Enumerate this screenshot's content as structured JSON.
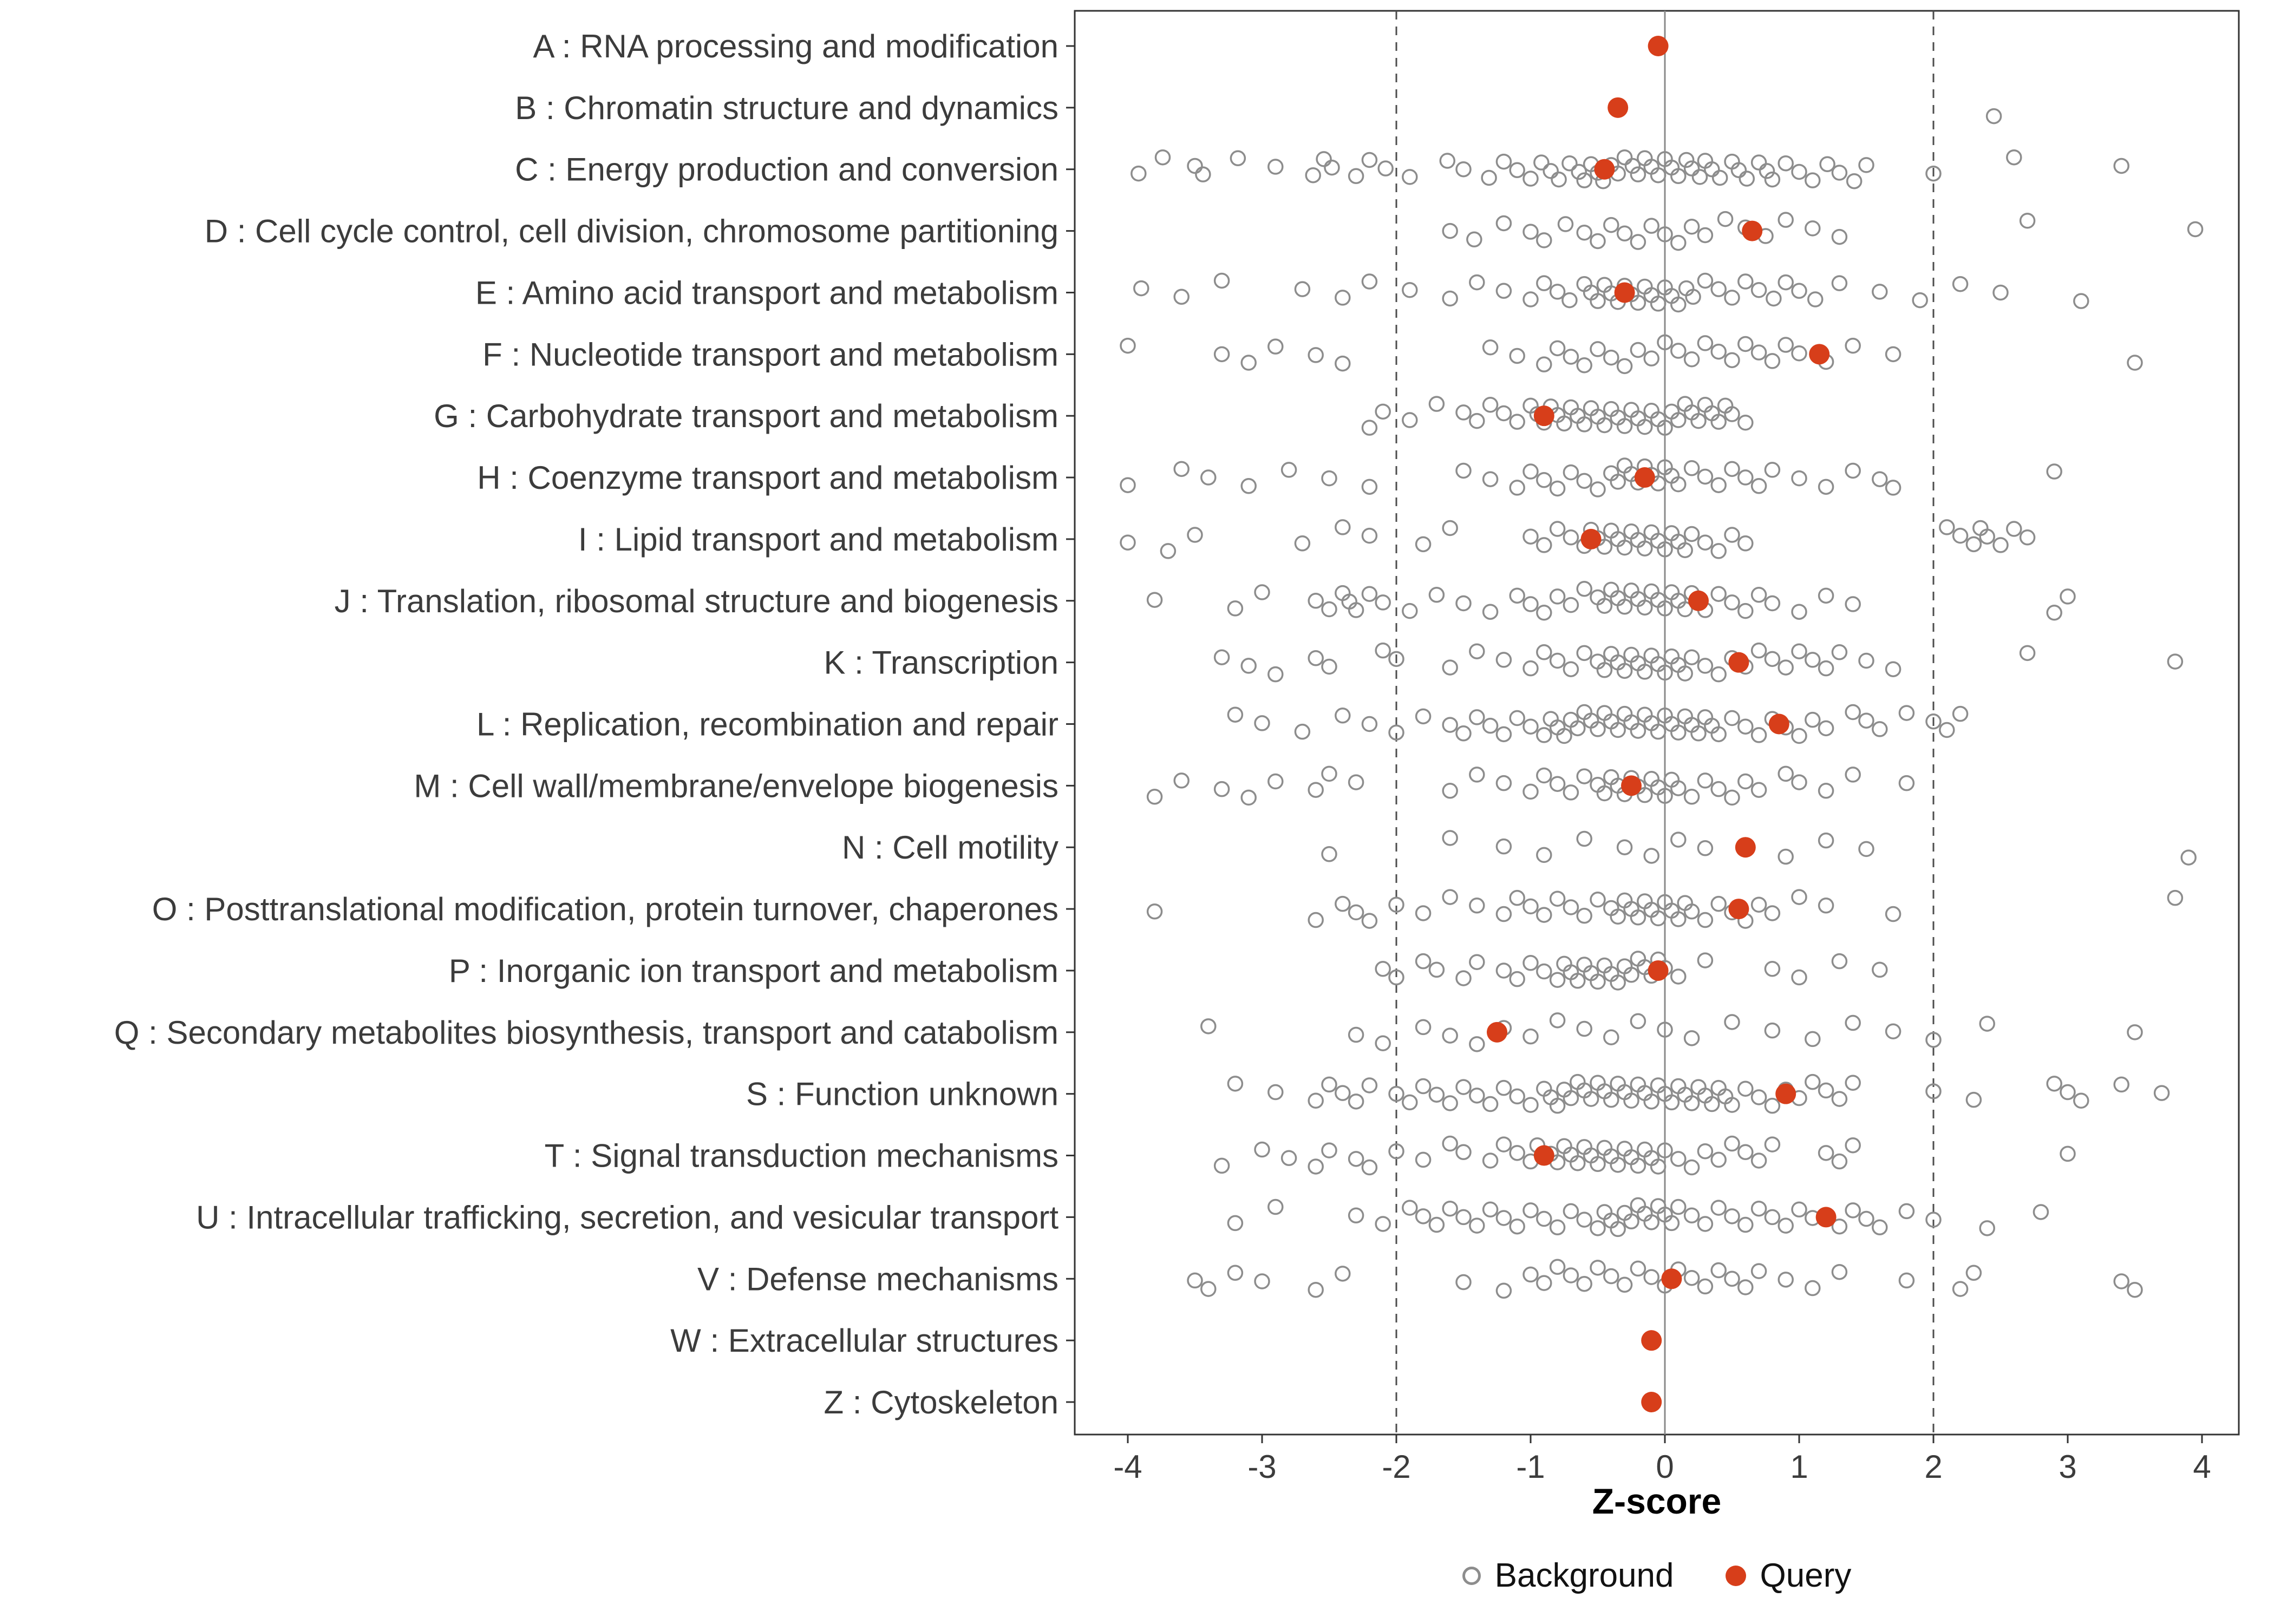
{
  "chart_data": {
    "type": "scatter",
    "title": "",
    "xlabel": "Z-score",
    "xlim": [
      -4.4,
      4.27
    ],
    "xticks": [
      -4,
      -3,
      -2,
      -1,
      0,
      1,
      2,
      3,
      4
    ],
    "grid": false,
    "legend_position": "bottom",
    "reference_lines": {
      "solid": [
        0
      ],
      "dashed": [
        -2,
        2
      ]
    },
    "legend": {
      "background": "Background",
      "query": "Query"
    },
    "colors": {
      "query": "#d73e1a",
      "background_stroke": "#8d8d8d",
      "axis_text": "#3c3c3c",
      "panel_border": "#333333",
      "dashed_line": "#4d4d4d",
      "zero_line": "#8a8a8a",
      "tick": "#333333"
    },
    "categories": [
      {
        "code": "A",
        "label": "A : RNA processing and modification",
        "query": -0.05,
        "background": []
      },
      {
        "code": "B",
        "label": "B : Chromatin structure and dynamics",
        "query": -0.35,
        "background": [
          2.45
        ]
      },
      {
        "code": "C",
        "label": "C : Energy production and conversion",
        "query": -0.45,
        "background": [
          -3.92,
          -3.74,
          -3.5,
          -3.44,
          -3.18,
          -2.9,
          -2.62,
          -2.54,
          -2.48,
          -2.3,
          -2.2,
          -2.08,
          -1.9,
          -1.62,
          -1.5,
          -1.31,
          -1.2,
          -1.1,
          -1.0,
          -0.92,
          -0.85,
          -0.79,
          -0.71,
          -0.64,
          -0.6,
          -0.55,
          -0.5,
          -0.46,
          -0.4,
          -0.35,
          -0.3,
          -0.24,
          -0.2,
          -0.15,
          -0.1,
          -0.05,
          0.0,
          0.05,
          0.1,
          0.16,
          0.2,
          0.26,
          0.3,
          0.35,
          0.41,
          0.5,
          0.55,
          0.61,
          0.7,
          0.76,
          0.8,
          0.9,
          1.0,
          1.1,
          1.21,
          1.3,
          1.41,
          1.5,
          2.0,
          2.6,
          3.4
        ]
      },
      {
        "code": "D",
        "label": "D : Cell cycle control, cell division, chromosome partitioning",
        "query": 0.65,
        "background": [
          -1.6,
          -1.42,
          -1.2,
          -1.0,
          -0.9,
          -0.74,
          -0.6,
          -0.5,
          -0.4,
          -0.3,
          -0.2,
          -0.1,
          0.0,
          0.1,
          0.2,
          0.3,
          0.45,
          0.6,
          0.75,
          0.9,
          1.1,
          1.3,
          2.7,
          3.95
        ]
      },
      {
        "code": "E",
        "label": "E : Amino acid transport and metabolism",
        "query": -0.3,
        "background": [
          -3.9,
          -3.6,
          -3.3,
          -2.7,
          -2.4,
          -2.2,
          -1.9,
          -1.6,
          -1.4,
          -1.2,
          -1.0,
          -0.9,
          -0.8,
          -0.71,
          -0.6,
          -0.55,
          -0.5,
          -0.45,
          -0.4,
          -0.35,
          -0.3,
          -0.25,
          -0.2,
          -0.15,
          -0.1,
          -0.05,
          0.0,
          0.05,
          0.1,
          0.16,
          0.21,
          0.3,
          0.4,
          0.5,
          0.6,
          0.7,
          0.81,
          0.9,
          1.0,
          1.12,
          1.3,
          1.6,
          1.9,
          2.2,
          2.5,
          3.1
        ]
      },
      {
        "code": "F",
        "label": "F : Nucleotide transport and metabolism",
        "query": 1.15,
        "background": [
          -4.0,
          -3.3,
          -3.1,
          -2.9,
          -2.6,
          -2.4,
          -1.3,
          -1.1,
          -0.9,
          -0.8,
          -0.7,
          -0.6,
          -0.5,
          -0.4,
          -0.3,
          -0.2,
          -0.1,
          0.0,
          0.1,
          0.2,
          0.3,
          0.4,
          0.5,
          0.6,
          0.7,
          0.8,
          0.9,
          1.0,
          1.2,
          1.4,
          1.7,
          3.5
        ]
      },
      {
        "code": "G",
        "label": "G : Carbohydrate transport and metabolism",
        "query": -0.9,
        "background": [
          -2.2,
          -2.1,
          -1.9,
          -1.7,
          -1.5,
          -1.4,
          -1.3,
          -1.2,
          -1.1,
          -1.0,
          -0.95,
          -0.9,
          -0.85,
          -0.8,
          -0.75,
          -0.7,
          -0.65,
          -0.6,
          -0.55,
          -0.5,
          -0.45,
          -0.4,
          -0.35,
          -0.3,
          -0.25,
          -0.2,
          -0.15,
          -0.1,
          -0.05,
          0.0,
          0.05,
          0.1,
          0.15,
          0.2,
          0.25,
          0.3,
          0.35,
          0.4,
          0.45,
          0.5,
          0.6
        ]
      },
      {
        "code": "H",
        "label": "H : Coenzyme transport and metabolism",
        "query": -0.15,
        "background": [
          -4.0,
          -3.6,
          -3.4,
          -3.1,
          -2.8,
          -2.5,
          -2.2,
          -1.5,
          -1.3,
          -1.1,
          -1.0,
          -0.9,
          -0.8,
          -0.7,
          -0.6,
          -0.5,
          -0.4,
          -0.35,
          -0.3,
          -0.25,
          -0.2,
          -0.15,
          -0.1,
          -0.05,
          0.0,
          0.05,
          0.1,
          0.2,
          0.3,
          0.4,
          0.5,
          0.6,
          0.7,
          0.8,
          1.0,
          1.2,
          1.4,
          1.6,
          1.7,
          2.9
        ]
      },
      {
        "code": "I",
        "label": "I : Lipid transport and metabolism",
        "query": -0.55,
        "background": [
          -4.0,
          -3.7,
          -3.5,
          -2.7,
          -2.4,
          -2.2,
          -1.8,
          -1.6,
          -1.0,
          -0.9,
          -0.8,
          -0.7,
          -0.6,
          -0.55,
          -0.5,
          -0.45,
          -0.4,
          -0.35,
          -0.3,
          -0.25,
          -0.2,
          -0.15,
          -0.1,
          -0.05,
          0.0,
          0.05,
          0.1,
          0.15,
          0.2,
          0.3,
          0.4,
          0.5,
          0.6,
          2.1,
          2.2,
          2.3,
          2.35,
          2.4,
          2.5,
          2.6,
          2.7
        ]
      },
      {
        "code": "J",
        "label": "J : Translation, ribosomal structure and biogenesis",
        "query": 0.25,
        "background": [
          -3.8,
          -3.2,
          -3.0,
          -2.6,
          -2.5,
          -2.4,
          -2.35,
          -2.3,
          -2.2,
          -2.1,
          -1.9,
          -1.7,
          -1.5,
          -1.3,
          -1.1,
          -1.0,
          -0.9,
          -0.8,
          -0.7,
          -0.6,
          -0.5,
          -0.45,
          -0.4,
          -0.35,
          -0.3,
          -0.25,
          -0.2,
          -0.15,
          -0.1,
          -0.05,
          0.0,
          0.05,
          0.1,
          0.15,
          0.2,
          0.26,
          0.3,
          0.4,
          0.5,
          0.6,
          0.7,
          0.8,
          1.0,
          1.2,
          1.4,
          2.9,
          3.0
        ]
      },
      {
        "code": "K",
        "label": "K : Transcription",
        "query": 0.55,
        "background": [
          -3.3,
          -3.1,
          -2.9,
          -2.6,
          -2.5,
          -2.1,
          -2.0,
          -1.6,
          -1.4,
          -1.2,
          -1.0,
          -0.9,
          -0.8,
          -0.7,
          -0.6,
          -0.5,
          -0.45,
          -0.4,
          -0.35,
          -0.3,
          -0.25,
          -0.2,
          -0.15,
          -0.1,
          -0.05,
          0.0,
          0.05,
          0.1,
          0.15,
          0.2,
          0.3,
          0.4,
          0.5,
          0.6,
          0.7,
          0.8,
          0.9,
          1.0,
          1.1,
          1.2,
          1.3,
          1.5,
          1.7,
          2.7,
          3.8
        ]
      },
      {
        "code": "L",
        "label": "L : Replication, recombination and repair",
        "query": 0.85,
        "background": [
          -3.2,
          -3.0,
          -2.7,
          -2.4,
          -2.2,
          -2.0,
          -1.8,
          -1.6,
          -1.5,
          -1.4,
          -1.3,
          -1.2,
          -1.1,
          -1.0,
          -0.9,
          -0.85,
          -0.8,
          -0.75,
          -0.7,
          -0.65,
          -0.6,
          -0.55,
          -0.5,
          -0.45,
          -0.4,
          -0.35,
          -0.3,
          -0.25,
          -0.2,
          -0.15,
          -0.1,
          -0.05,
          0.0,
          0.05,
          0.1,
          0.15,
          0.2,
          0.25,
          0.3,
          0.35,
          0.4,
          0.5,
          0.6,
          0.7,
          0.8,
          0.9,
          1.0,
          1.1,
          1.2,
          1.4,
          1.5,
          1.6,
          1.8,
          2.0,
          2.1,
          2.2
        ]
      },
      {
        "code": "M",
        "label": "M : Cell wall/membrane/envelope biogenesis",
        "query": -0.25,
        "background": [
          -3.8,
          -3.6,
          -3.3,
          -3.1,
          -2.9,
          -2.6,
          -2.5,
          -2.3,
          -1.6,
          -1.4,
          -1.2,
          -1.0,
          -0.9,
          -0.8,
          -0.7,
          -0.6,
          -0.5,
          -0.45,
          -0.4,
          -0.35,
          -0.3,
          -0.25,
          -0.2,
          -0.15,
          -0.1,
          -0.05,
          0.0,
          0.05,
          0.1,
          0.2,
          0.3,
          0.4,
          0.5,
          0.6,
          0.7,
          0.9,
          1.0,
          1.2,
          1.4,
          1.8
        ]
      },
      {
        "code": "N",
        "label": "N : Cell motility",
        "query": 0.6,
        "background": [
          -2.5,
          -1.6,
          -1.2,
          -0.9,
          -0.6,
          -0.3,
          -0.1,
          0.1,
          0.3,
          0.9,
          1.2,
          1.5,
          3.9
        ]
      },
      {
        "code": "O",
        "label": "O : Posttranslational modification, protein turnover, chaperones",
        "query": 0.55,
        "background": [
          -3.8,
          -2.6,
          -2.4,
          -2.3,
          -2.2,
          -2.0,
          -1.8,
          -1.6,
          -1.4,
          -1.2,
          -1.1,
          -1.0,
          -0.9,
          -0.8,
          -0.7,
          -0.6,
          -0.5,
          -0.4,
          -0.35,
          -0.3,
          -0.25,
          -0.2,
          -0.15,
          -0.1,
          -0.05,
          0.0,
          0.05,
          0.1,
          0.15,
          0.2,
          0.3,
          0.4,
          0.5,
          0.6,
          0.7,
          0.8,
          1.0,
          1.2,
          1.7,
          3.8
        ]
      },
      {
        "code": "P",
        "label": "P : Inorganic ion transport and metabolism",
        "query": -0.05,
        "background": [
          -2.1,
          -2.0,
          -1.8,
          -1.7,
          -1.5,
          -1.4,
          -1.2,
          -1.1,
          -1.0,
          -0.9,
          -0.8,
          -0.75,
          -0.7,
          -0.65,
          -0.6,
          -0.55,
          -0.5,
          -0.45,
          -0.4,
          -0.35,
          -0.3,
          -0.25,
          -0.2,
          -0.15,
          -0.1,
          -0.05,
          0.0,
          0.1,
          0.3,
          0.8,
          1.0,
          1.3,
          1.6
        ]
      },
      {
        "code": "Q",
        "label": "Q : Secondary metabolites biosynthesis, transport and catabolism",
        "query": -1.25,
        "background": [
          -3.4,
          -2.3,
          -2.1,
          -1.8,
          -1.6,
          -1.4,
          -1.2,
          -1.0,
          -0.8,
          -0.6,
          -0.4,
          -0.2,
          0.0,
          0.2,
          0.5,
          0.8,
          1.1,
          1.4,
          1.7,
          2.0,
          2.4,
          3.5
        ]
      },
      {
        "code": "S",
        "label": "S : Function unknown",
        "query": 0.9,
        "background": [
          -3.2,
          -2.9,
          -2.6,
          -2.5,
          -2.4,
          -2.3,
          -2.2,
          -2.0,
          -1.9,
          -1.8,
          -1.7,
          -1.6,
          -1.5,
          -1.4,
          -1.3,
          -1.2,
          -1.1,
          -1.0,
          -0.9,
          -0.85,
          -0.8,
          -0.75,
          -0.7,
          -0.65,
          -0.6,
          -0.55,
          -0.5,
          -0.45,
          -0.4,
          -0.35,
          -0.3,
          -0.25,
          -0.2,
          -0.15,
          -0.1,
          -0.05,
          0.0,
          0.05,
          0.1,
          0.15,
          0.2,
          0.25,
          0.3,
          0.35,
          0.4,
          0.45,
          0.5,
          0.6,
          0.7,
          0.8,
          0.9,
          1.0,
          1.1,
          1.2,
          1.3,
          1.4,
          2.0,
          2.3,
          2.9,
          3.0,
          3.1,
          3.4,
          3.7
        ]
      },
      {
        "code": "T",
        "label": "T : Signal transduction mechanisms",
        "query": -0.9,
        "background": [
          -3.3,
          -3.0,
          -2.8,
          -2.6,
          -2.5,
          -2.3,
          -2.2,
          -2.0,
          -1.8,
          -1.6,
          -1.5,
          -1.3,
          -1.2,
          -1.1,
          -1.0,
          -0.95,
          -0.85,
          -0.8,
          -0.75,
          -0.7,
          -0.65,
          -0.6,
          -0.55,
          -0.5,
          -0.45,
          -0.4,
          -0.35,
          -0.3,
          -0.25,
          -0.2,
          -0.15,
          -0.1,
          -0.05,
          0.0,
          0.1,
          0.2,
          0.3,
          0.4,
          0.5,
          0.6,
          0.7,
          0.8,
          1.2,
          1.3,
          1.4,
          3.0
        ]
      },
      {
        "code": "U",
        "label": "U : Intracellular trafficking, secretion, and vesicular transport",
        "query": 1.2,
        "background": [
          -3.2,
          -2.9,
          -2.3,
          -2.1,
          -1.9,
          -1.8,
          -1.7,
          -1.6,
          -1.5,
          -1.4,
          -1.3,
          -1.2,
          -1.1,
          -1.0,
          -0.9,
          -0.8,
          -0.7,
          -0.6,
          -0.5,
          -0.45,
          -0.4,
          -0.35,
          -0.3,
          -0.25,
          -0.2,
          -0.15,
          -0.1,
          -0.05,
          0.0,
          0.05,
          0.1,
          0.2,
          0.3,
          0.4,
          0.5,
          0.6,
          0.7,
          0.8,
          0.9,
          1.0,
          1.1,
          1.3,
          1.4,
          1.5,
          1.6,
          1.8,
          2.0,
          2.4,
          2.8
        ]
      },
      {
        "code": "V",
        "label": "V : Defense mechanisms",
        "query": 0.05,
        "background": [
          -3.5,
          -3.4,
          -3.2,
          -3.0,
          -2.6,
          -2.4,
          -1.5,
          -1.2,
          -1.0,
          -0.9,
          -0.8,
          -0.7,
          -0.6,
          -0.5,
          -0.4,
          -0.3,
          -0.2,
          -0.1,
          0.0,
          0.1,
          0.2,
          0.3,
          0.4,
          0.5,
          0.6,
          0.7,
          0.9,
          1.1,
          1.3,
          1.8,
          2.2,
          2.3,
          3.4,
          3.5
        ]
      },
      {
        "code": "W",
        "label": "W : Extracellular structures",
        "query": -0.1,
        "background": []
      },
      {
        "code": "Z",
        "label": "Z : Cytoskeleton",
        "query": -0.1,
        "background": []
      }
    ]
  }
}
